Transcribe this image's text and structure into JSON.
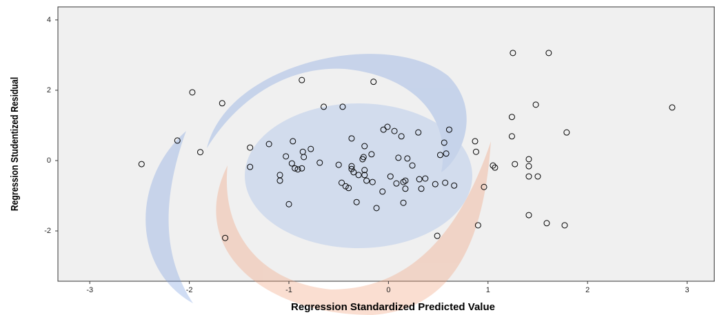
{
  "chart_data": {
    "type": "scatter",
    "x_label": "Regression Standardized Predicted Value",
    "y_label": "Regression Studentized Residual",
    "xlim": [
      -3.32,
      3.28
    ],
    "ylim": [
      -3.43,
      4.37
    ],
    "xticks": [
      -3,
      -2,
      -1,
      0,
      1,
      2,
      3
    ],
    "yticks": [
      -2,
      0,
      2,
      4
    ],
    "grid": false,
    "color": "#000000",
    "x": [
      -2.48,
      -2.12,
      -1.97,
      -1.89,
      -1.67,
      -1.64,
      -1.39,
      -1.39,
      -1.2,
      -1.09,
      -1.09,
      -1.03,
      -1.0,
      -0.96,
      -0.97,
      -0.94,
      -0.91,
      -0.87,
      -0.86,
      -0.85,
      -0.87,
      -0.78,
      -0.69,
      -0.65,
      -0.5,
      -0.47,
      -0.46,
      -0.43,
      -0.4,
      -0.37,
      -0.35,
      -0.3,
      -0.25,
      -0.26,
      -0.24,
      -0.24,
      -0.24,
      -0.37,
      -0.32,
      -0.37,
      -0.22,
      -0.17,
      -0.16,
      -0.15,
      -0.12,
      -0.06,
      -0.05,
      -0.01,
      0.06,
      0.08,
      0.02,
      0.1,
      0.13,
      0.15,
      0.17,
      0.17,
      0.19,
      0.15,
      0.24,
      0.3,
      0.31,
      0.33,
      0.37,
      0.47,
      0.52,
      0.56,
      0.58,
      0.57,
      0.61,
      0.66,
      0.49,
      0.87,
      0.88,
      0.96,
      0.9,
      1.05,
      1.07,
      1.24,
      1.24,
      1.25,
      1.27,
      1.41,
      1.41,
      1.41,
      1.41,
      1.48,
      1.5,
      1.59,
      1.61,
      1.77,
      1.79,
      2.85
    ],
    "y": [
      -0.1,
      0.57,
      1.94,
      0.24,
      1.63,
      -2.2,
      0.37,
      -0.18,
      0.47,
      -0.41,
      -0.57,
      0.12,
      -1.24,
      0.55,
      -0.08,
      -0.22,
      -0.25,
      2.29,
      0.25,
      0.1,
      -0.22,
      0.33,
      -0.06,
      1.53,
      -0.12,
      -0.63,
      1.53,
      -0.73,
      -0.78,
      -0.16,
      -0.33,
      -0.41,
      0.1,
      0.04,
      0.41,
      -0.41,
      -0.27,
      0.63,
      -1.18,
      -0.24,
      -0.57,
      0.18,
      -0.61,
      2.24,
      -1.35,
      -0.88,
      0.88,
      0.96,
      0.84,
      -0.65,
      -0.45,
      0.08,
      0.69,
      -0.61,
      -0.8,
      -0.57,
      0.06,
      -1.2,
      -0.14,
      0.8,
      -0.53,
      -0.8,
      -0.51,
      -0.67,
      0.16,
      0.51,
      0.2,
      -0.63,
      0.88,
      -0.71,
      -2.14,
      0.55,
      0.25,
      -0.75,
      -1.84,
      -0.14,
      -0.2,
      0.69,
      1.24,
      3.06,
      -0.1,
      0.04,
      -0.16,
      -0.45,
      -1.55,
      1.59,
      -0.45,
      -1.78,
      3.06,
      -1.84,
      0.8,
      1.51
    ]
  }
}
